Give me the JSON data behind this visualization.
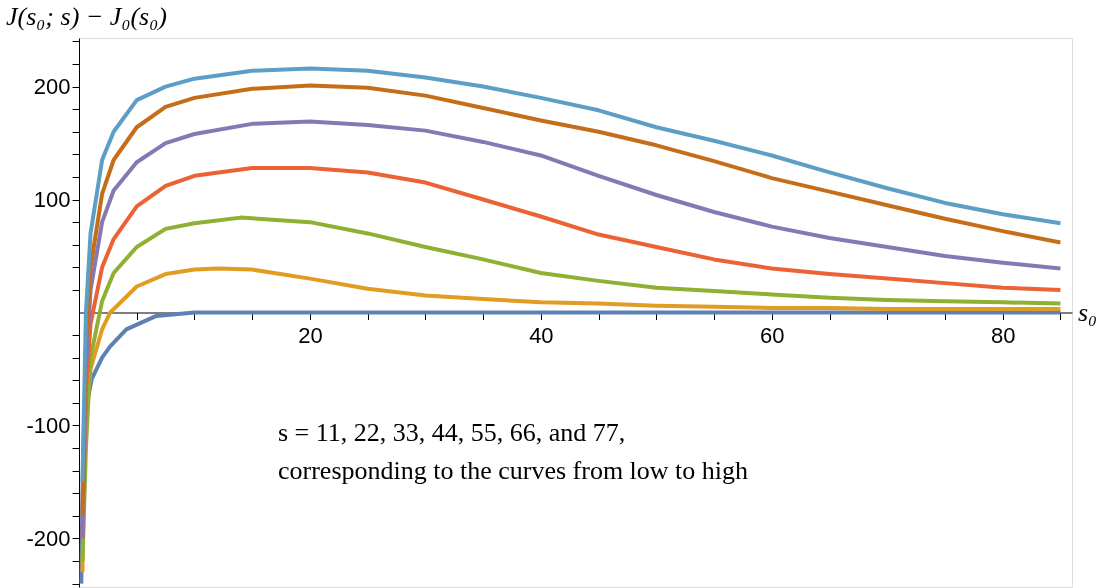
{
  "chart_data": {
    "type": "line",
    "xlabel": "s₀",
    "ylabel": "J(s₀; s) − J₀(s₀)",
    "annotations": [
      "s = 11, 22, 33, 44, 55, 66, and 77,",
      "corresponding to the curves from low to high"
    ],
    "xlim": [
      0,
      86
    ],
    "ylim": [
      -243,
      243
    ],
    "xticks": [
      {
        "value": 5,
        "label": null
      },
      {
        "value": 10,
        "label": null
      },
      {
        "value": 15,
        "label": null
      },
      20,
      {
        "value": 25,
        "label": null
      },
      {
        "value": 30,
        "label": null
      },
      {
        "value": 35,
        "label": null
      },
      40,
      {
        "value": 45,
        "label": null
      },
      {
        "value": 50,
        "label": null
      },
      {
        "value": 55,
        "label": null
      },
      60,
      {
        "value": 65,
        "label": null
      },
      {
        "value": 70,
        "label": null
      },
      {
        "value": 75,
        "label": null
      },
      80,
      {
        "value": 85,
        "label": null
      }
    ],
    "yticks": [
      {
        "value": -240,
        "label": null
      },
      {
        "value": -220,
        "label": null
      },
      -200,
      {
        "value": -180,
        "label": null
      },
      {
        "value": -160,
        "label": null
      },
      {
        "value": -140,
        "label": null
      },
      {
        "value": -120,
        "label": null
      },
      -100,
      {
        "value": -80,
        "label": null
      },
      {
        "value": -60,
        "label": null
      },
      {
        "value": -40,
        "label": null
      },
      {
        "value": -20,
        "label": null
      },
      {
        "value": 20,
        "label": null
      },
      {
        "value": 40,
        "label": null
      },
      {
        "value": 60,
        "label": null
      },
      {
        "value": 80,
        "label": null
      },
      100,
      {
        "value": 120,
        "label": null
      },
      {
        "value": 140,
        "label": null
      },
      {
        "value": 160,
        "label": null
      },
      {
        "value": 180,
        "label": null
      },
      200,
      {
        "value": 220,
        "label": null
      },
      {
        "value": 240,
        "label": null
      }
    ],
    "grid": false,
    "legend": false,
    "marker": "none",
    "line_style": "solid",
    "series": [
      {
        "color": "#5e81b5",
        "x": [
          0.2,
          0.3,
          0.43,
          0.7,
          1.1,
          2,
          2.7,
          4.1,
          6.7,
          10,
          15,
          20,
          30,
          40,
          50,
          60,
          70,
          80,
          85
        ],
        "values": [
          -240,
          -160,
          -100,
          -80,
          -59,
          -40,
          -30,
          -15,
          -3,
          0,
          0,
          0,
          0,
          0,
          0,
          0,
          0,
          0,
          0
        ]
      },
      {
        "color": "#e19c24",
        "x": [
          0.3,
          0.5,
          1,
          2,
          2.7,
          3.5,
          5,
          7.5,
          10,
          12,
          15,
          20,
          25,
          30,
          35,
          40,
          45,
          50,
          55,
          60,
          65,
          70,
          75,
          80,
          85
        ],
        "values": [
          -230,
          -100,
          -50,
          -15,
          0,
          8,
          23,
          34,
          38,
          39,
          38,
          30,
          21,
          15,
          12,
          9,
          8,
          6,
          5,
          4,
          4,
          3,
          3,
          3,
          3
        ]
      },
      {
        "color": "#8fb032",
        "x": [
          0.3,
          0.6,
          1,
          2,
          3,
          5,
          7.5,
          10,
          14,
          20,
          25,
          30,
          35,
          40,
          45,
          50,
          55,
          60,
          65,
          70,
          75,
          80,
          85
        ],
        "values": [
          -220,
          -120,
          -40,
          10,
          35,
          58,
          74,
          79,
          84,
          80,
          70,
          58,
          47,
          35,
          28,
          22,
          19,
          16,
          13,
          11,
          10,
          9,
          8
        ]
      },
      {
        "color": "#eb6235",
        "x": [
          0.3,
          0.6,
          1,
          2,
          3,
          5,
          7.5,
          10,
          15,
          20,
          25,
          30,
          35,
          40,
          45,
          50,
          55,
          60,
          65,
          70,
          75,
          80,
          85
        ],
        "values": [
          -200,
          -70,
          -10,
          40,
          65,
          94,
          112,
          121,
          128,
          128,
          124,
          115,
          100,
          85,
          69,
          58,
          47,
          39,
          34,
          30,
          26,
          22,
          20
        ]
      },
      {
        "color": "#8778b3",
        "x": [
          0.3,
          0.6,
          1,
          2,
          3,
          5,
          7.5,
          10,
          15,
          20,
          25,
          30,
          35,
          40,
          45,
          50,
          55,
          60,
          65,
          70,
          75,
          80,
          85
        ],
        "values": [
          -200,
          -50,
          20,
          80,
          108,
          133,
          150,
          158,
          167,
          169,
          166,
          161,
          151,
          139,
          121,
          104,
          89,
          76,
          66,
          58,
          50,
          44,
          39
        ]
      },
      {
        "color": "#c56e1a",
        "x": [
          0.3,
          0.6,
          1,
          2,
          3,
          5,
          7.5,
          10,
          15,
          20,
          25,
          30,
          35,
          40,
          45,
          50,
          55,
          60,
          65,
          70,
          75,
          80,
          85
        ],
        "values": [
          -180,
          -30,
          40,
          105,
          135,
          164,
          182,
          190,
          198,
          201,
          199,
          192,
          181,
          170,
          160,
          148,
          134,
          119,
          107,
          95,
          83,
          72,
          62
        ]
      },
      {
        "color": "#5d9ec7",
        "x": [
          0.3,
          0.6,
          1,
          2,
          3,
          5,
          7.5,
          10,
          15,
          20,
          25,
          30,
          35,
          40,
          45,
          50,
          55,
          60,
          65,
          70,
          75,
          80,
          85
        ],
        "values": [
          -150,
          0,
          70,
          135,
          160,
          188,
          200,
          207,
          214,
          216,
          214,
          208,
          200,
          190,
          179,
          164,
          152,
          139,
          124,
          110,
          97,
          87,
          79
        ]
      }
    ]
  }
}
